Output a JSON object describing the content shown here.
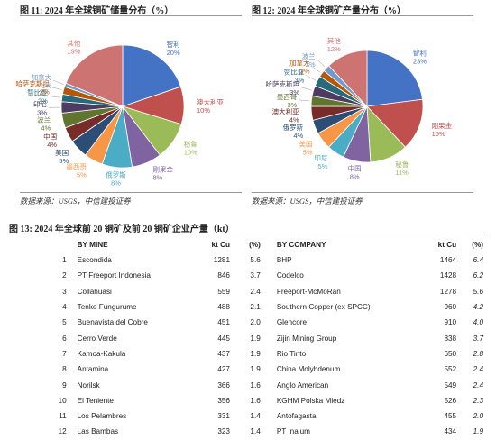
{
  "fig11": {
    "title": "图 11: 2024 年全球铜矿储量分布（%）",
    "source": "数据来源：USGS，中信建投证券"
  },
  "fig12": {
    "title": "图 12: 2024 年全球铜矿产量分布（%）",
    "source": "数据来源：USGS，中信建投证券"
  },
  "fig13": {
    "title": "图 13: 2024 年全球前 20 铜矿及前 20 铜矿企业产量（kt）"
  },
  "chart_data": [
    {
      "type": "pie",
      "title": "图 11: 2024 年全球铜矿储量分布（%）",
      "slices": [
        {
          "name": "智利",
          "value": 20,
          "label": "20%",
          "color": "#4472C4"
        },
        {
          "name": "澳大利亚",
          "value": 10,
          "label": "10%",
          "color": "#C0504D"
        },
        {
          "name": "秘鲁",
          "value": 10,
          "label": "10%",
          "color": "#9BBB59"
        },
        {
          "name": "刚果金",
          "value": 8,
          "label": "8%",
          "color": "#8064A2"
        },
        {
          "name": "俄罗斯",
          "value": 8,
          "label": "8%",
          "color": "#4BACC6"
        },
        {
          "name": "墨西哥",
          "value": 5,
          "label": "5%",
          "color": "#F79646"
        },
        {
          "name": "美国",
          "value": 5,
          "label": "5%",
          "color": "#2C4D75"
        },
        {
          "name": "中国",
          "value": 4,
          "label": "4%",
          "color": "#772C2A"
        },
        {
          "name": "波兰",
          "value": 4,
          "label": "4%",
          "color": "#5F7530"
        },
        {
          "name": "印尼",
          "value": 3,
          "label": "3%",
          "color": "#4D3B62"
        },
        {
          "name": "赞比亚",
          "value": 2,
          "label": "2%",
          "color": "#276A7C"
        },
        {
          "name": "哈萨克斯坦",
          "value": 2,
          "label": "2%",
          "color": "#B65708"
        },
        {
          "name": "加拿大",
          "value": 1,
          "label": "1%",
          "color": "#729ACA"
        },
        {
          "name": "其他",
          "value": 19,
          "label": "19%",
          "color": "#CD7371"
        }
      ]
    },
    {
      "type": "pie",
      "title": "图 12: 2024 年全球铜矿产量分布（%）",
      "slices": [
        {
          "name": "智利",
          "value": 23,
          "label": "23%",
          "color": "#4472C4"
        },
        {
          "name": "刚果金",
          "value": 15,
          "label": "15%",
          "color": "#C0504D"
        },
        {
          "name": "秘鲁",
          "value": 11,
          "label": "11%",
          "color": "#9BBB59"
        },
        {
          "name": "中国",
          "value": 8,
          "label": "8%",
          "color": "#8064A2"
        },
        {
          "name": "印尼",
          "value": 5,
          "label": "5%",
          "color": "#4BACC6"
        },
        {
          "name": "美国",
          "value": 5,
          "label": "5%",
          "color": "#F79646"
        },
        {
          "name": "俄罗斯",
          "value": 4,
          "label": "4%",
          "color": "#2C4D75"
        },
        {
          "name": "澳大利亚",
          "value": 4,
          "label": "4%",
          "color": "#772C2A"
        },
        {
          "name": "墨西哥",
          "value": 3,
          "label": "3%",
          "color": "#5F7530"
        },
        {
          "name": "哈萨克斯坦",
          "value": 3,
          "label": "3%",
          "color": "#4D3B62"
        },
        {
          "name": "赞比亚",
          "value": 3,
          "label": "3%",
          "color": "#276A7C"
        },
        {
          "name": "加拿大",
          "value": 2,
          "label": "2%",
          "color": "#B65708"
        },
        {
          "name": "波兰",
          "value": 2,
          "label": "2%",
          "color": "#729ACA"
        },
        {
          "name": "其他",
          "value": 12,
          "label": "12%",
          "color": "#CD7371"
        }
      ]
    },
    {
      "type": "table",
      "title": "图 13: 2024 年全球前 20 铜矿及前 20 铜矿企业产量（kt）",
      "headers": [
        "",
        "BY MINE",
        "kt Cu",
        "(%)",
        "BY COMPANY",
        "kt Cu",
        "(%)"
      ],
      "rows": [
        [
          "1",
          "Escondida",
          "1281",
          "5.6",
          "BHP",
          "1464",
          "6.4"
        ],
        [
          "2",
          "PT Freeport Indonesia",
          "846",
          "3.7",
          "Codelco",
          "1428",
          "6.2"
        ],
        [
          "3",
          "Collahuasi",
          "559",
          "2.4",
          "Freeport-McMoRan",
          "1278",
          "5.6"
        ],
        [
          "4",
          "Tenke Fungurume",
          "488",
          "2.1",
          "Southern Copper (ex SPCC)",
          "960",
          "4.2"
        ],
        [
          "5",
          "Buenavista del Cobre",
          "451",
          "2.0",
          "Glencore",
          "910",
          "4.0"
        ],
        [
          "6",
          "Cerro Verde",
          "445",
          "1.9",
          "Zijin Mining Group",
          "838",
          "3.7"
        ],
        [
          "7",
          "Kamoa-Kakula",
          "437",
          "1.9",
          "Rio Tinto",
          "650",
          "2.8"
        ],
        [
          "8",
          "Antamina",
          "427",
          "1.9",
          "China Molybdenum",
          "552",
          "2.4"
        ],
        [
          "9",
          "Norilsk",
          "366",
          "1.6",
          "Anglo American",
          "549",
          "2.4"
        ],
        [
          "10",
          "El Teniente",
          "356",
          "1.6",
          "KGHM Polska Miedz",
          "526",
          "2.3"
        ],
        [
          "11",
          "Los Pelambres",
          "331",
          "1.4",
          "Antofagasta",
          "455",
          "2.0"
        ],
        [
          "12",
          "Las Bambas",
          "323",
          "1.4",
          "PT Inalum",
          "434",
          "1.9"
        ]
      ]
    }
  ]
}
